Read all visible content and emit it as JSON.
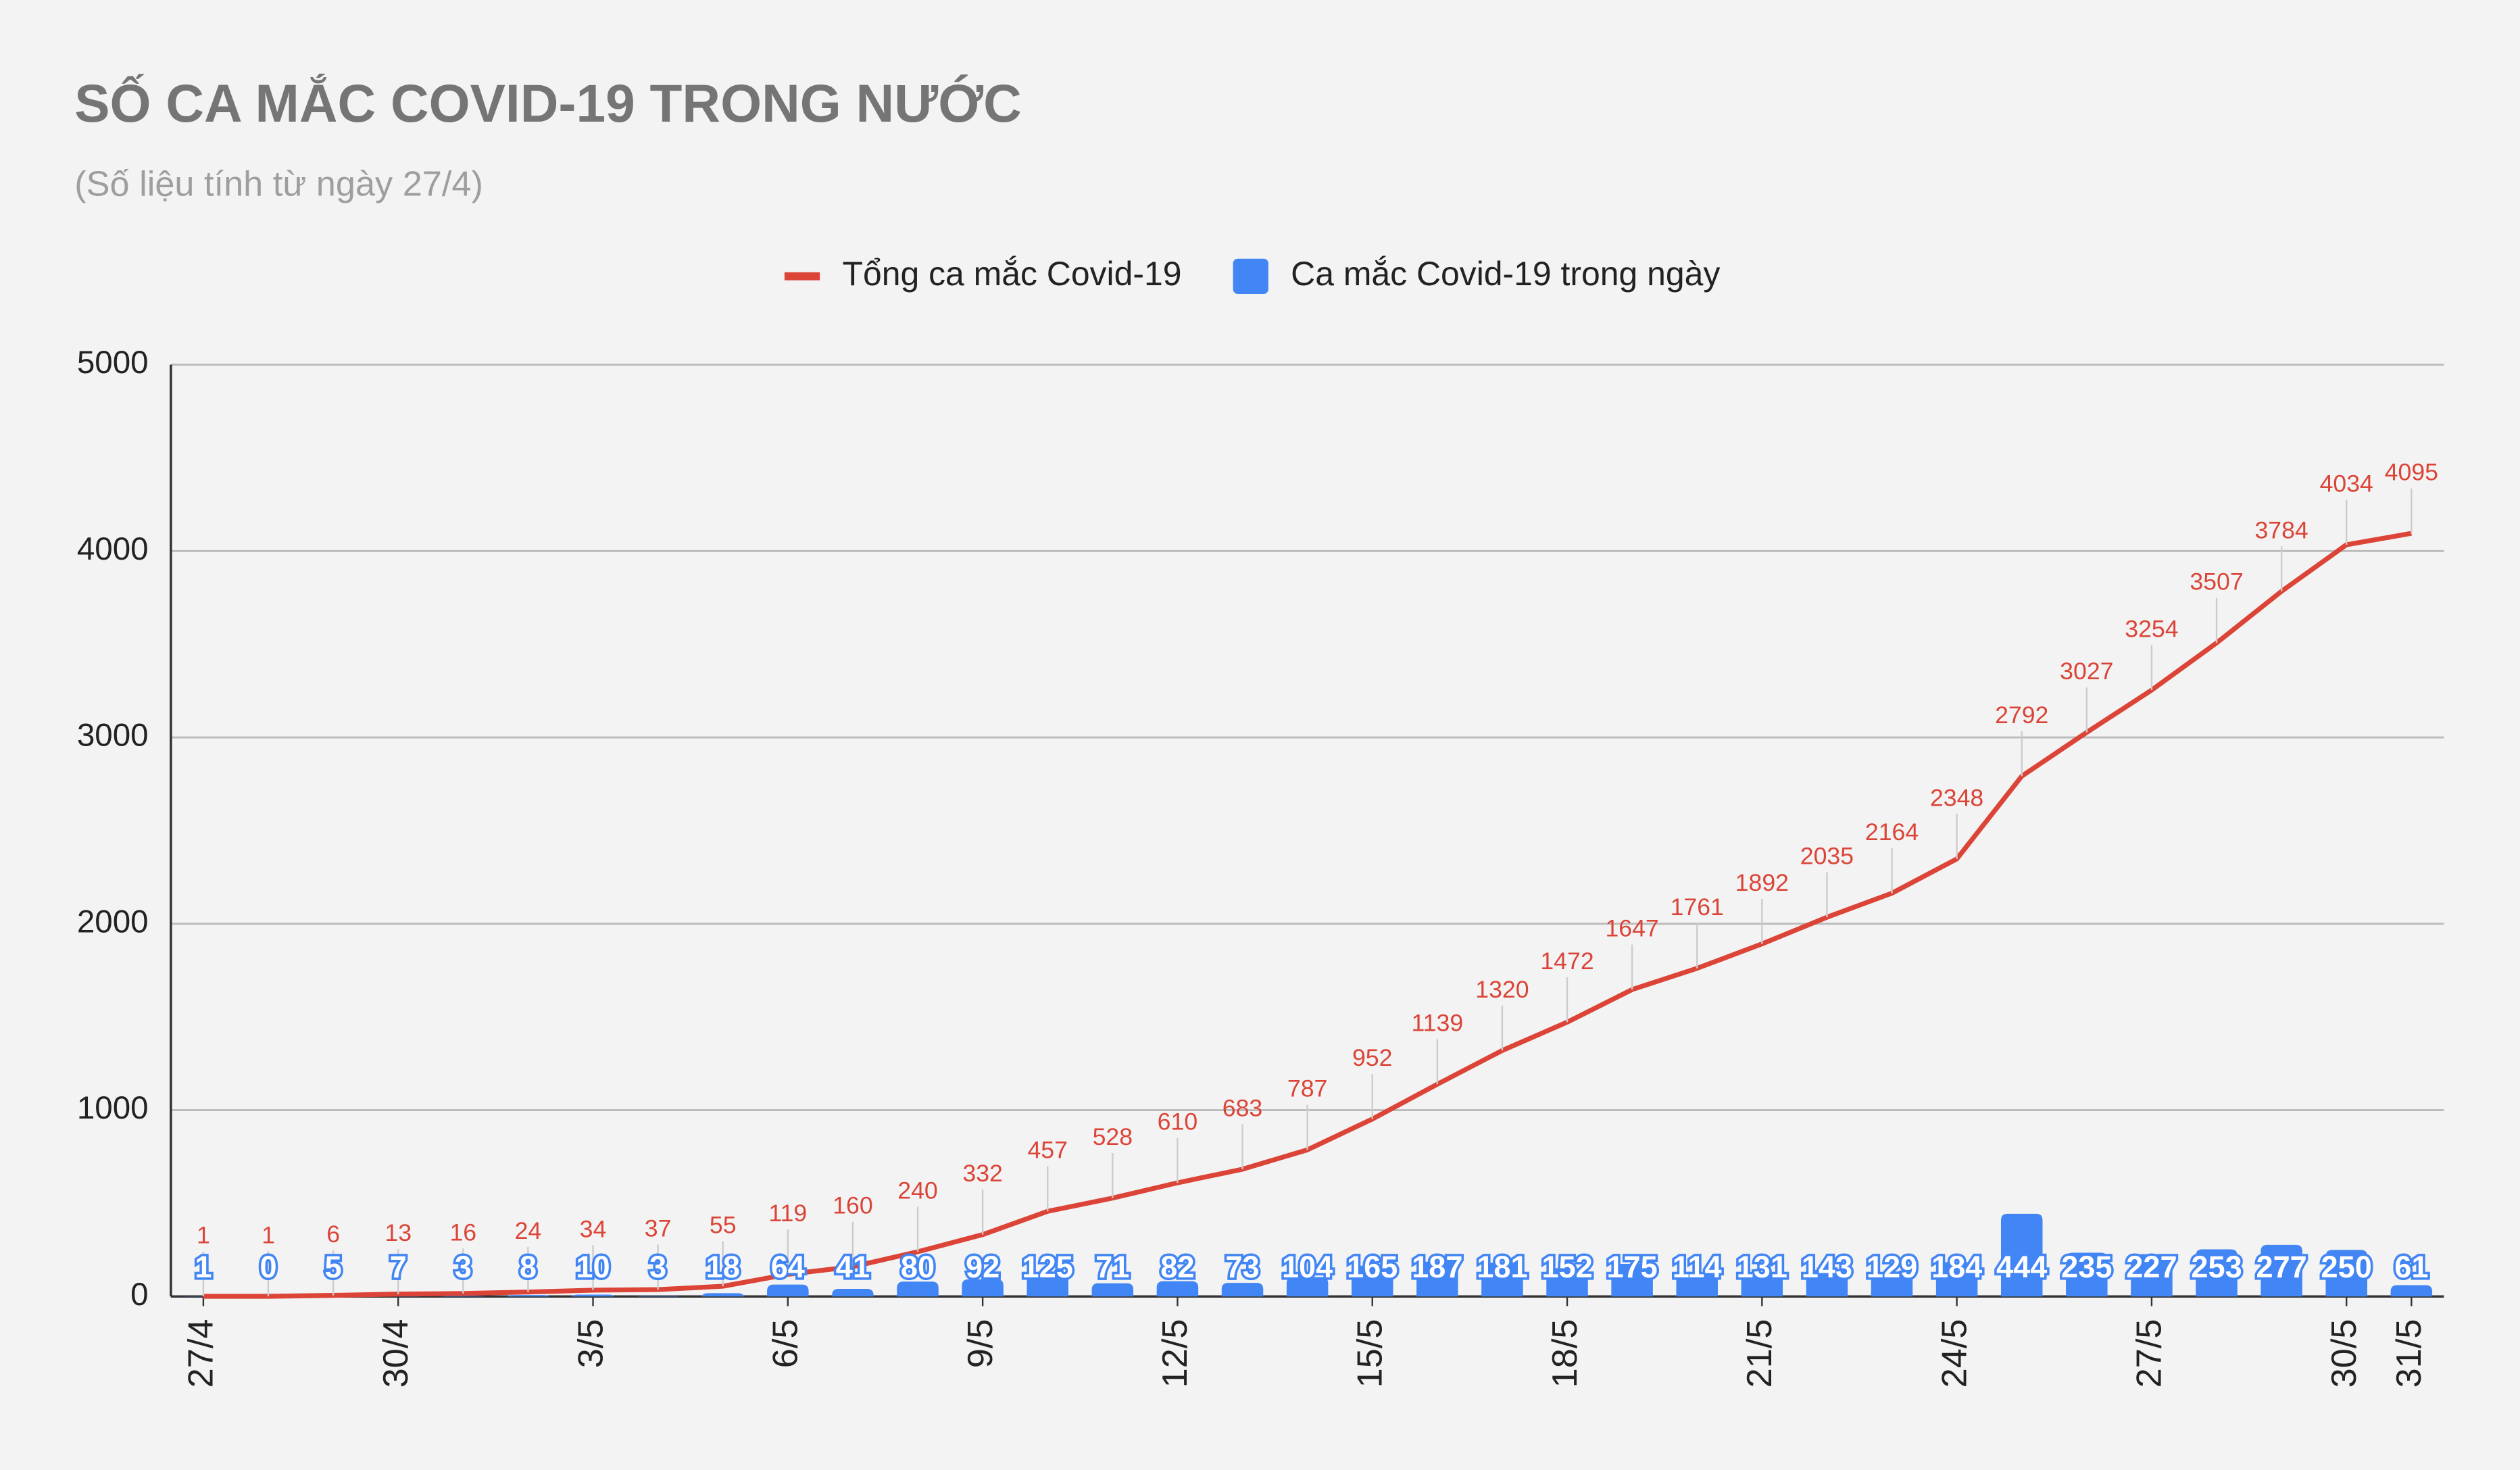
{
  "chart_data": {
    "type": "combo",
    "title": "SỐ CA MẮC COVID-19 TRONG NƯỚC",
    "subtitle": "(Số liệu tính từ ngày 27/4)",
    "categories": [
      "27/4",
      null,
      null,
      "30/4",
      null,
      null,
      "3/5",
      null,
      null,
      "6/5",
      null,
      null,
      "9/5",
      null,
      null,
      "12/5",
      null,
      null,
      "15/5",
      null,
      null,
      "18/5",
      null,
      null,
      "21/5",
      null,
      null,
      "24/5",
      null,
      null,
      "27/5",
      null,
      null,
      "30/5",
      "31/5"
    ],
    "series": [
      {
        "name": "Tổng ca mắc Covid-19",
        "type": "line",
        "color": "#db4437",
        "values": [
          1,
          1,
          6,
          13,
          16,
          24,
          34,
          37,
          55,
          119,
          160,
          240,
          332,
          457,
          528,
          610,
          683,
          787,
          952,
          1139,
          1320,
          1472,
          1647,
          1761,
          1892,
          2035,
          2164,
          2348,
          2792,
          3027,
          3254,
          3507,
          3784,
          4034,
          4095
        ]
      },
      {
        "name": "Ca mắc Covid-19 trong ngày",
        "type": "bar",
        "color": "#4285f4",
        "values": [
          1,
          0,
          5,
          7,
          3,
          8,
          10,
          3,
          18,
          64,
          41,
          80,
          92,
          125,
          71,
          82,
          73,
          104,
          165,
          187,
          181,
          152,
          175,
          114,
          131,
          143,
          129,
          184,
          444,
          235,
          227,
          253,
          277,
          250,
          61
        ]
      }
    ],
    "ylim": [
      0,
      5000
    ],
    "yticks": [
      0,
      1000,
      2000,
      3000,
      4000,
      5000
    ],
    "grid": true,
    "legend": "top"
  }
}
